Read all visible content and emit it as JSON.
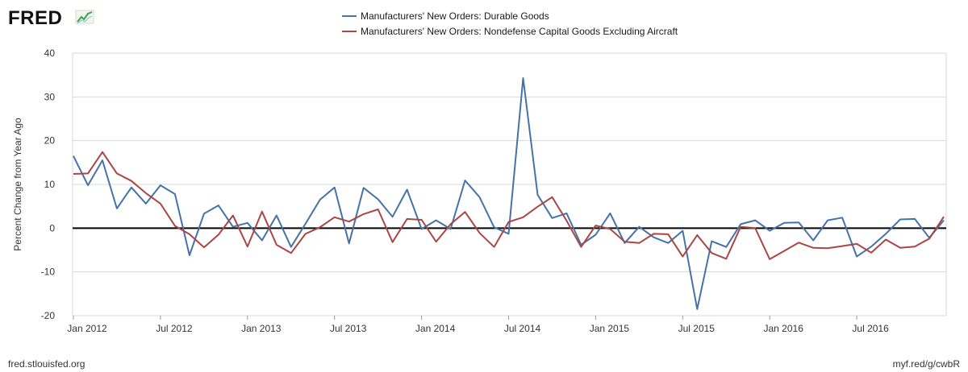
{
  "branding": {
    "logo_text": "FRED",
    "logo_icon": "line-chart-icon",
    "source_url": "fred.stlouisfed.org",
    "short_link": "myf.red/g/cwbR"
  },
  "colors": {
    "durable": "#4572a7",
    "nondefense": "#aa4643",
    "zero_line": "#000000",
    "logo_green": "#3ca14f"
  },
  "chart_data": {
    "type": "line",
    "title": "",
    "ylabel": "Percent Change from Year Ago",
    "xlabel": "",
    "ylim": [
      -20,
      40
    ],
    "yticks": [
      -20,
      -10,
      0,
      10,
      20,
      30,
      40
    ],
    "x_start": "Jan 2012",
    "x_end": "Dec 2016",
    "xticks": [
      {
        "label": "Jan 2012",
        "index": 0
      },
      {
        "label": "Jul 2012",
        "index": 6
      },
      {
        "label": "Jan 2013",
        "index": 12
      },
      {
        "label": "Jul 2013",
        "index": 18
      },
      {
        "label": "Jan 2014",
        "index": 24
      },
      {
        "label": "Jul 2014",
        "index": 30
      },
      {
        "label": "Jan 2015",
        "index": 36
      },
      {
        "label": "Jul 2015",
        "index": 42
      },
      {
        "label": "Jan 2016",
        "index": 48
      },
      {
        "label": "Jul 2016",
        "index": 54
      }
    ],
    "series": [
      {
        "name": "Manufacturers' New Orders: Durable Goods",
        "color": "#4572a7",
        "values": [
          16.5,
          9.8,
          15.5,
          4.5,
          9.3,
          5.6,
          9.8,
          7.8,
          -6.2,
          3.3,
          5.2,
          0.3,
          1.2,
          -2.8,
          2.9,
          -4.3,
          1.0,
          6.5,
          9.3,
          -3.5,
          9.2,
          6.6,
          2.6,
          8.8,
          -0.2,
          1.8,
          -0.2,
          10.9,
          7.1,
          0.2,
          -1.3,
          34.3,
          7.6,
          2.3,
          3.4,
          -3.8,
          -1.5,
          3.4,
          -3.4,
          0.3,
          -2.1,
          -3.4,
          -0.6,
          -18.5,
          -3.0,
          -4.3,
          0.9,
          1.8,
          -0.6,
          1.2,
          1.3,
          -2.8,
          1.8,
          2.4,
          -6.5,
          -4.2,
          -1.3,
          2.0,
          2.1,
          -2.2,
          1.8
        ]
      },
      {
        "name": "Manufacturers' New Orders: Nondefense Capital Goods Excluding Aircraft",
        "color": "#aa4643",
        "values": [
          12.4,
          12.5,
          17.4,
          12.5,
          10.8,
          8.0,
          5.6,
          0.5,
          -1.4,
          -4.4,
          -1.5,
          2.9,
          -4.2,
          3.8,
          -3.8,
          -5.7,
          -1.3,
          0.2,
          2.5,
          1.5,
          3.2,
          4.3,
          -3.2,
          2.1,
          1.9,
          -3.1,
          0.9,
          3.7,
          -1.1,
          -4.3,
          1.4,
          2.5,
          4.9,
          7.1,
          1.7,
          -4.3,
          0.6,
          -0.2,
          -3.1,
          -3.4,
          -1.3,
          -1.4,
          -6.5,
          -1.6,
          -5.7,
          -7.0,
          0.3,
          0.0,
          -7.1,
          -5.2,
          -3.3,
          -4.5,
          -4.6,
          -4.1,
          -3.6,
          -5.6,
          -2.6,
          -4.5,
          -4.2,
          -2.4,
          2.6
        ]
      }
    ],
    "legend_position": "top-center",
    "grid": true
  }
}
